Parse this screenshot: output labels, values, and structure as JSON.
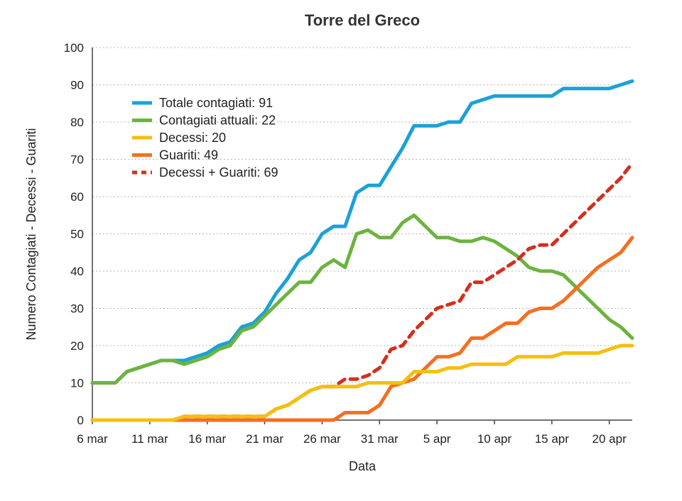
{
  "chart_data": {
    "type": "line",
    "title": "Torre del Greco",
    "xlabel": "Data",
    "ylabel": "Numero Contagiati - Decessi - Guariti",
    "ylim": [
      0,
      100
    ],
    "yticks": [
      0,
      10,
      20,
      30,
      40,
      50,
      60,
      70,
      80,
      90,
      100
    ],
    "xlim": [
      "6 mar",
      "22 apr"
    ],
    "xticks": [
      "6 mar",
      "11 mar",
      "16 mar",
      "21 mar",
      "26 mar",
      "31 mar",
      "5 apr",
      "10 apr",
      "15 apr",
      "20 apr"
    ],
    "grid": true,
    "legend_position": "top-left",
    "x": [
      "6 mar",
      "7 mar",
      "8 mar",
      "9 mar",
      "10 mar",
      "11 mar",
      "12 mar",
      "13 mar",
      "14 mar",
      "15 mar",
      "16 mar",
      "17 mar",
      "18 mar",
      "19 mar",
      "20 mar",
      "21 mar",
      "22 mar",
      "23 mar",
      "24 mar",
      "25 mar",
      "26 mar",
      "27 mar",
      "28 mar",
      "29 mar",
      "30 mar",
      "31 mar",
      "1 apr",
      "2 apr",
      "3 apr",
      "4 apr",
      "5 apr",
      "6 apr",
      "7 apr",
      "8 apr",
      "9 apr",
      "10 apr",
      "11 apr",
      "12 apr",
      "13 apr",
      "14 apr",
      "15 apr",
      "16 apr",
      "17 apr",
      "18 apr",
      "19 apr",
      "20 apr",
      "21 apr",
      "22 apr"
    ],
    "series": [
      {
        "name": "Totale contagiati: 91",
        "color": "#1ba1d8",
        "style": "solid",
        "values": [
          10,
          10,
          10,
          13,
          14,
          15,
          16,
          16,
          16,
          17,
          18,
          20,
          21,
          25,
          26,
          29,
          34,
          38,
          43,
          45,
          50,
          52,
          52,
          61,
          63,
          63,
          68,
          73,
          79,
          79,
          79,
          80,
          80,
          85,
          86,
          87,
          87,
          87,
          87,
          87,
          87,
          89,
          89,
          89,
          89,
          89,
          90,
          91
        ]
      },
      {
        "name": "Contagiati attuali: 22",
        "color": "#6db33f",
        "style": "solid",
        "values": [
          10,
          10,
          10,
          13,
          14,
          15,
          16,
          16,
          15,
          16,
          17,
          19,
          20,
          24,
          25,
          28,
          31,
          34,
          37,
          37,
          41,
          43,
          41,
          50,
          51,
          49,
          49,
          53,
          55,
          52,
          49,
          49,
          48,
          48,
          49,
          48,
          46,
          44,
          41,
          40,
          40,
          39,
          36,
          33,
          30,
          27,
          25,
          22
        ]
      },
      {
        "name": "Decessi: 20",
        "color": "#f5bf0f",
        "style": "solid",
        "values": [
          0,
          0,
          0,
          0,
          0,
          0,
          0,
          0,
          1,
          1,
          1,
          1,
          1,
          1,
          1,
          1,
          3,
          4,
          6,
          8,
          9,
          9,
          9,
          9,
          10,
          10,
          10,
          10,
          13,
          13,
          13,
          14,
          14,
          15,
          15,
          15,
          15,
          17,
          17,
          17,
          17,
          18,
          18,
          18,
          18,
          19,
          20,
          20
        ]
      },
      {
        "name": "Guariti: 49",
        "color": "#f37021",
        "style": "solid",
        "values": [
          0,
          0,
          0,
          0,
          0,
          0,
          0,
          0,
          0,
          0,
          0,
          0,
          0,
          0,
          0,
          0,
          0,
          0,
          0,
          0,
          0,
          0,
          2,
          2,
          2,
          4,
          9,
          10,
          11,
          14,
          17,
          17,
          18,
          22,
          22,
          24,
          26,
          26,
          29,
          30,
          30,
          32,
          35,
          38,
          41,
          43,
          45,
          49
        ]
      },
      {
        "name": "Decessi + Guariti: 69",
        "color": "#d42f1e",
        "style": "dashed",
        "values": [
          0,
          0,
          0,
          0,
          0,
          0,
          0,
          0,
          1,
          1,
          1,
          1,
          1,
          1,
          1,
          1,
          3,
          4,
          6,
          8,
          9,
          9,
          11,
          11,
          12,
          14,
          19,
          20,
          24,
          27,
          30,
          31,
          32,
          37,
          37,
          39,
          41,
          43,
          46,
          47,
          47,
          50,
          53,
          56,
          59,
          62,
          65,
          69
        ]
      }
    ]
  }
}
